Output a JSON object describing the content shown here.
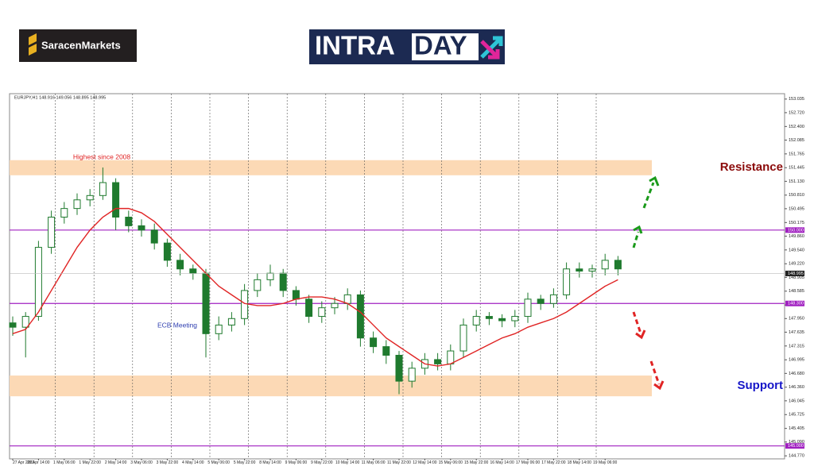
{
  "header": {
    "brand": "SaracenMarkets",
    "banner_left": "INTRA",
    "banner_right": "DAY"
  },
  "chart_data": {
    "type": "candlestick",
    "symbol_label": "EURJPY,H1 148.916 149.056 148.895 148.995",
    "categories": [
      "27 Apr 2023",
      null,
      "28 Apr 14:00",
      null,
      "1 May 06:00",
      null,
      "1 May 22:00",
      null,
      "2 May 14:00",
      null,
      "3 May 06:00",
      null,
      "3 May 22:00",
      null,
      "4 May 14:00",
      null,
      "5 May 06:00",
      null,
      "5 May 22:00",
      null,
      "8 May 14:00",
      null,
      "9 May 06:00",
      null,
      "9 May 22:00",
      null,
      "10 May 14:00",
      null,
      "11 May 06:00",
      null,
      "11 May 22:00",
      null,
      "12 May 14:00",
      null,
      "15 May 06:00",
      null,
      "15 May 22:00",
      null,
      "16 May 14:00",
      null,
      "17 May 06:00",
      null,
      "17 May 22:00",
      null,
      "18 May 14:00",
      null,
      "19 May 06:00",
      null
    ],
    "open": [
      147.85,
      147.75,
      148.0,
      149.6,
      150.3,
      150.5,
      150.7,
      150.8,
      151.1,
      150.3,
      150.1,
      150.0,
      149.7,
      149.3,
      149.1,
      149.0,
      147.6,
      147.8,
      147.95,
      148.6,
      148.85,
      149.0,
      148.6,
      148.4,
      148.0,
      148.2,
      148.3,
      148.5,
      147.5,
      147.3,
      147.1,
      146.5,
      146.8,
      147.0,
      146.9,
      147.2,
      147.8,
      148.0,
      147.95,
      147.9,
      148.0,
      148.4,
      148.3,
      148.5,
      149.1,
      149.05,
      149.1,
      149.3
    ],
    "high": [
      148.0,
      148.1,
      149.75,
      150.45,
      150.65,
      150.85,
      150.95,
      151.45,
      151.2,
      150.45,
      150.25,
      150.15,
      149.8,
      149.45,
      149.2,
      149.1,
      148.0,
      148.1,
      148.75,
      149.0,
      149.2,
      149.1,
      148.7,
      148.5,
      148.35,
      148.45,
      148.65,
      148.6,
      147.65,
      147.45,
      147.2,
      146.95,
      147.15,
      147.15,
      147.35,
      147.95,
      148.15,
      148.1,
      148.05,
      148.15,
      148.55,
      148.5,
      148.65,
      149.25,
      149.25,
      149.2,
      149.45,
      149.4
    ],
    "low": [
      147.55,
      147.05,
      147.9,
      149.45,
      150.15,
      150.35,
      150.55,
      150.7,
      150.0,
      149.95,
      149.85,
      149.55,
      149.15,
      148.95,
      148.85,
      147.05,
      147.45,
      147.65,
      147.8,
      148.45,
      148.7,
      148.45,
      148.25,
      147.85,
      147.85,
      148.05,
      148.15,
      147.3,
      147.15,
      146.9,
      146.2,
      146.35,
      146.65,
      146.75,
      146.75,
      147.05,
      147.65,
      147.8,
      147.75,
      147.75,
      147.85,
      148.15,
      148.2,
      148.4,
      148.9,
      148.9,
      148.95,
      148.95
    ],
    "close": [
      147.75,
      148.0,
      149.6,
      150.3,
      150.5,
      150.7,
      150.8,
      151.1,
      150.3,
      150.1,
      150.0,
      149.7,
      149.3,
      149.1,
      149.0,
      147.6,
      147.8,
      147.95,
      148.6,
      148.85,
      149.0,
      148.6,
      148.4,
      148.0,
      148.2,
      148.3,
      148.5,
      147.5,
      147.3,
      147.1,
      146.5,
      146.8,
      147.0,
      146.9,
      147.2,
      147.8,
      148.0,
      147.95,
      147.9,
      148.0,
      148.4,
      148.3,
      148.5,
      149.1,
      149.05,
      149.1,
      149.3,
      149.1
    ],
    "up_color": "#1f7a2e",
    "down_color": "#1f7a2e",
    "moving_average": {
      "color": "#e02424",
      "values": [
        147.6,
        147.7,
        148.1,
        148.6,
        149.1,
        149.6,
        150.0,
        150.3,
        150.5,
        150.5,
        150.4,
        150.2,
        149.9,
        149.6,
        149.3,
        149.0,
        148.7,
        148.5,
        148.3,
        148.25,
        148.25,
        148.3,
        148.4,
        148.45,
        148.45,
        148.4,
        148.3,
        148.1,
        147.8,
        147.5,
        147.3,
        147.1,
        146.9,
        146.85,
        146.9,
        147.05,
        147.2,
        147.35,
        147.5,
        147.6,
        147.75,
        147.85,
        147.95,
        148.1,
        148.3,
        148.5,
        148.7,
        148.85
      ]
    },
    "ylim": [
      144.7,
      153.16
    ],
    "yticks": [
      153.035,
      {
        "value": 152.72,
        "label": "152.720"
      },
      {
        "value": 152.4,
        "label": "152.400"
      },
      152.085,
      151.765,
      151.445,
      {
        "value": 151.13,
        "label": "151.130"
      },
      {
        "value": 150.81,
        "label": "150.810"
      },
      150.495,
      150.175,
      {
        "value": 149.86,
        "label": "149.860"
      },
      {
        "value": 149.54,
        "label": "149.540"
      },
      {
        "value": 149.22,
        "label": "149.220"
      },
      148.905,
      148.585,
      148.265,
      {
        "value": 147.95,
        "label": "147.950"
      },
      147.635,
      147.315,
      146.995,
      {
        "value": 146.68,
        "label": "146.680"
      },
      {
        "value": 146.36,
        "label": "146.360"
      },
      146.045,
      145.725,
      145.405,
      {
        "value": 145.09,
        "label": "145.090"
      },
      {
        "value": 144.77,
        "label": "144.770"
      }
    ],
    "levels": [
      {
        "value": 150,
        "label": "150.000"
      },
      {
        "value": 148.3,
        "label": "148.300"
      },
      {
        "value": 145,
        "label": "145.000"
      }
    ],
    "level_color": "#a020c0",
    "last_price": {
      "value": 148.995,
      "label": "148.995"
    },
    "zones": [
      {
        "from": 151.27,
        "to": 151.62,
        "label": "Resistance",
        "label_color": "#8b0a0a"
      },
      {
        "from": 146.15,
        "to": 146.63,
        "label": "Support",
        "label_color": "#1515c8"
      }
    ],
    "zone_color": "#fcd9b5",
    "annotations": [
      {
        "text": "Highest since 2008",
        "color": "#e02424"
      },
      {
        "text": "ECB Meeting",
        "color": "#2f3fb0"
      }
    ]
  }
}
